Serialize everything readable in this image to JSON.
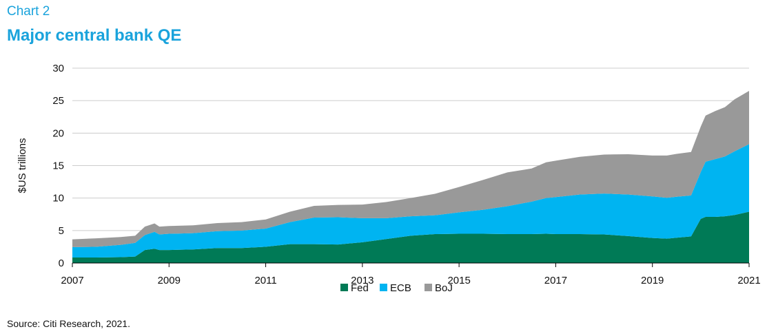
{
  "header": {
    "kicker": "Chart 2",
    "title": "Major central bank QE"
  },
  "footer": {
    "source": "Source: Citi Research, 2021."
  },
  "colors": {
    "fed": "#007a56",
    "ecb": "#00b4f1",
    "boj": "#999999",
    "title": "#1aa3dc",
    "grid": "#cccccc"
  },
  "chart_data": {
    "type": "area",
    "stacked": true,
    "title": "",
    "xlabel": "",
    "ylabel": "$US trillions",
    "ylim": [
      0,
      30
    ],
    "yticks": [
      0,
      5,
      10,
      15,
      20,
      25,
      30
    ],
    "xlim": [
      2007,
      2021
    ],
    "xticks": [
      "2007",
      "2009",
      "2011",
      "2013",
      "2015",
      "2017",
      "2019",
      "2021"
    ],
    "grid": "horizontal",
    "legend_position": "bottom-center",
    "x": [
      2007.0,
      2007.5,
      2008.0,
      2008.3,
      2008.5,
      2008.7,
      2008.8,
      2009.0,
      2009.5,
      2010.0,
      2010.5,
      2011.0,
      2011.5,
      2012.0,
      2012.5,
      2013.0,
      2013.5,
      2014.0,
      2014.5,
      2015.0,
      2015.5,
      2016.0,
      2016.5,
      2016.8,
      2017.0,
      2017.5,
      2018.0,
      2018.5,
      2019.0,
      2019.3,
      2019.5,
      2019.8,
      2020.0,
      2020.1,
      2020.3,
      2020.5,
      2020.7,
      2021.0
    ],
    "series": [
      {
        "name": "Fed",
        "color": "#007a56",
        "values": [
          0.85,
          0.85,
          0.9,
          1.0,
          2.0,
          2.2,
          2.0,
          2.0,
          2.1,
          2.3,
          2.3,
          2.5,
          2.9,
          2.9,
          2.85,
          3.2,
          3.7,
          4.2,
          4.45,
          4.5,
          4.5,
          4.45,
          4.45,
          4.5,
          4.45,
          4.45,
          4.4,
          4.15,
          3.85,
          3.75,
          3.9,
          4.1,
          6.8,
          7.1,
          7.1,
          7.2,
          7.4,
          7.9
        ]
      },
      {
        "name": "ECB",
        "color": "#00b4f1",
        "values": [
          1.6,
          1.65,
          1.9,
          2.1,
          2.3,
          2.6,
          2.4,
          2.5,
          2.5,
          2.6,
          2.7,
          2.8,
          3.4,
          4.1,
          4.2,
          3.7,
          3.2,
          3.0,
          2.9,
          3.3,
          3.7,
          4.3,
          5.0,
          5.5,
          5.7,
          6.1,
          6.3,
          6.4,
          6.4,
          6.3,
          6.3,
          6.3,
          7.2,
          8.5,
          8.9,
          9.2,
          9.8,
          10.4
        ]
      },
      {
        "name": "BoJ",
        "color": "#999999",
        "values": [
          1.2,
          1.3,
          1.2,
          1.1,
          1.3,
          1.3,
          1.2,
          1.2,
          1.2,
          1.25,
          1.3,
          1.4,
          1.6,
          1.8,
          1.9,
          2.1,
          2.5,
          2.8,
          3.3,
          3.9,
          4.6,
          5.2,
          5.1,
          5.5,
          5.6,
          5.8,
          6.0,
          6.2,
          6.3,
          6.5,
          6.6,
          6.7,
          7.0,
          7.1,
          7.4,
          7.6,
          8.0,
          8.2
        ]
      }
    ]
  }
}
